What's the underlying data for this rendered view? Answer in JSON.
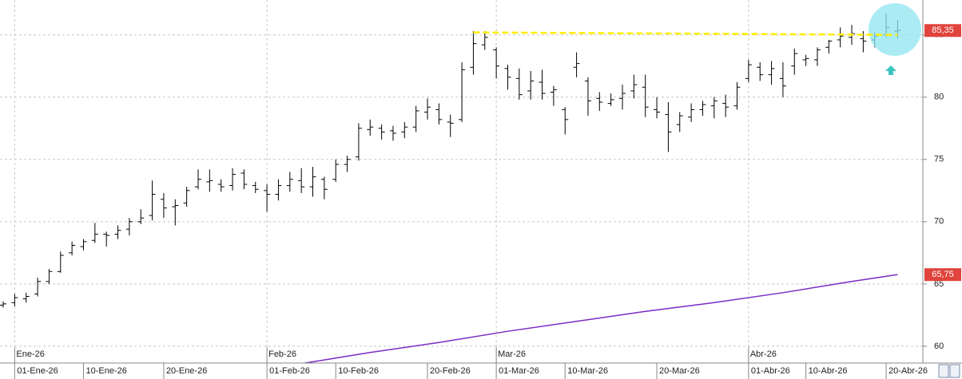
{
  "chart_data": {
    "type": "ohlc",
    "xlim": [
      -0.28,
      80.2
    ],
    "ylim": [
      58.65,
      87.8
    ],
    "yticks": [
      60,
      65,
      70,
      75,
      80,
      85
    ],
    "grid": true,
    "xticks": [
      {
        "value": 1,
        "label": "01-Ene-26"
      },
      {
        "value": 7,
        "label": "10-Ene-26"
      },
      {
        "value": 14,
        "label": "20-Ene-26"
      },
      {
        "value": 23,
        "label": "01-Feb-26"
      },
      {
        "value": 29,
        "label": "10-Feb-26"
      },
      {
        "value": 37,
        "label": "20-Feb-26"
      },
      {
        "value": 43,
        "label": "01-Mar-26"
      },
      {
        "value": 49,
        "label": "10-Mar-26"
      },
      {
        "value": 57,
        "label": "20-Mar-26"
      },
      {
        "value": 65,
        "label": "01-Abr-26"
      },
      {
        "value": 70,
        "label": "10-Abr-26"
      },
      {
        "value": 77,
        "label": "20-Abr-26"
      }
    ],
    "month_ticks": [
      {
        "value": 1,
        "label": "Ene-26"
      },
      {
        "value": 23,
        "label": "Feb-26"
      },
      {
        "value": 43,
        "label": "Mar-26"
      },
      {
        "value": 65,
        "label": "Abr-26"
      }
    ],
    "bar_color": "#000000",
    "bars": {
      "open": [
        63.3,
        63.5,
        63.8,
        64.2,
        65.2,
        66.0,
        67.5,
        68.0,
        68.5,
        69.0,
        69.0,
        69.4,
        70.0,
        70.5,
        71.8,
        71.2,
        71.5,
        72.8,
        73.2,
        73.0,
        72.9,
        73.9,
        72.9,
        72.5,
        72.2,
        72.9,
        73.3,
        72.8,
        73.4,
        73.4,
        74.6,
        75.2,
        77.4,
        77.5,
        77.3,
        77.2,
        77.6,
        78.8,
        79.0,
        78.0,
        78.2,
        82.4,
        84.2,
        83.8,
        82.3,
        81.5,
        80.5,
        81.2,
        80.4,
        79.0,
        82.4,
        81.3,
        79.9,
        79.5,
        79.9,
        80.5,
        80.8,
        79.0,
        78.6,
        77.8,
        78.4,
        79.0,
        79.3,
        79.5,
        79.3,
        81.5,
        82.4,
        81.8,
        81.5,
        82.5,
        83.0,
        83.0,
        84.0,
        84.6,
        84.8,
        84.7,
        84.6,
        85.0,
        85.3
      ],
      "high": [
        63.6,
        64.2,
        64.3,
        65.5,
        66.2,
        67.6,
        68.4,
        68.6,
        69.9,
        69.2,
        69.7,
        70.3,
        71.0,
        73.3,
        72.3,
        71.8,
        72.8,
        74.2,
        74.2,
        73.4,
        74.3,
        74.2,
        73.2,
        73.0,
        73.4,
        74.0,
        74.3,
        74.4,
        73.6,
        75.0,
        75.3,
        77.9,
        78.2,
        77.8,
        77.7,
        78.0,
        79.3,
        79.9,
        79.5,
        78.6,
        82.8,
        85.3,
        85.3,
        84.0,
        82.6,
        82.3,
        82.1,
        82.2,
        80.9,
        79.2,
        83.6,
        81.6,
        80.4,
        80.3,
        81.0,
        81.8,
        81.8,
        80.0,
        79.6,
        78.8,
        79.5,
        79.7,
        80.0,
        80.2,
        81.2,
        83.0,
        82.8,
        82.9,
        82.8,
        83.9,
        83.4,
        84.0,
        84.6,
        85.6,
        85.8,
        85.3,
        85.2,
        86.7,
        86.2
      ],
      "low": [
        63.1,
        63.2,
        63.5,
        64.0,
        65.0,
        65.9,
        67.3,
        67.7,
        68.3,
        68.0,
        68.6,
        68.9,
        69.8,
        70.1,
        70.3,
        69.7,
        71.2,
        72.6,
        72.4,
        72.4,
        72.5,
        72.6,
        72.3,
        70.8,
        71.7,
        72.4,
        72.3,
        72.0,
        71.8,
        73.2,
        74.0,
        74.9,
        76.9,
        76.6,
        76.5,
        76.7,
        77.2,
        78.2,
        77.8,
        76.8,
        78.0,
        81.8,
        83.8,
        81.5,
        80.6,
        79.8,
        79.8,
        79.8,
        79.3,
        77.0,
        81.6,
        78.5,
        78.9,
        79.3,
        79.0,
        79.9,
        78.4,
        78.3,
        75.6,
        77.2,
        78.0,
        78.5,
        78.3,
        78.4,
        79.0,
        81.2,
        81.3,
        81.0,
        80.0,
        81.8,
        82.5,
        82.5,
        83.5,
        84.0,
        84.2,
        83.6,
        84.0,
        84.8,
        84.7
      ],
      "close": [
        63.4,
        63.9,
        64.0,
        65.2,
        66.0,
        67.3,
        68.1,
        68.4,
        69.0,
        68.9,
        69.3,
        70.0,
        70.3,
        72.2,
        71.1,
        71.3,
        72.5,
        73.4,
        73.3,
        72.8,
        73.8,
        73.0,
        72.6,
        72.2,
        72.9,
        73.4,
        72.8,
        73.6,
        72.6,
        74.6,
        75.0,
        77.5,
        77.6,
        77.2,
        77.1,
        77.6,
        78.9,
        79.2,
        78.2,
        77.9,
        82.2,
        84.3,
        84.8,
        82.5,
        81.6,
        80.2,
        81.3,
        80.3,
        80.6,
        78.2,
        82.7,
        79.7,
        79.6,
        79.8,
        80.3,
        81.0,
        79.2,
        78.8,
        77.2,
        78.5,
        79.0,
        79.4,
        79.7,
        79.2,
        80.8,
        82.6,
        81.8,
        82.3,
        80.9,
        83.5,
        83.1,
        83.8,
        84.5,
        84.9,
        85.1,
        84.5,
        84.9,
        85.6,
        85.35
      ]
    },
    "moving_average": {
      "color": "#7a2bc4",
      "x": [
        26,
        32,
        38,
        44,
        50,
        56,
        62,
        68,
        74,
        78
      ],
      "values": [
        58.6,
        59.5,
        60.3,
        61.2,
        62.0,
        62.8,
        63.5,
        64.3,
        65.2,
        65.75
      ]
    },
    "resistance": {
      "color": "#ffee00",
      "x": [
        41,
        78
      ],
      "values": [
        85.2,
        85.0
      ]
    },
    "price_labels": [
      {
        "value": 85.35,
        "label": "85,35"
      },
      {
        "value": 65.75,
        "label": "65,75"
      }
    ],
    "price_label_color": "#e0443c"
  }
}
